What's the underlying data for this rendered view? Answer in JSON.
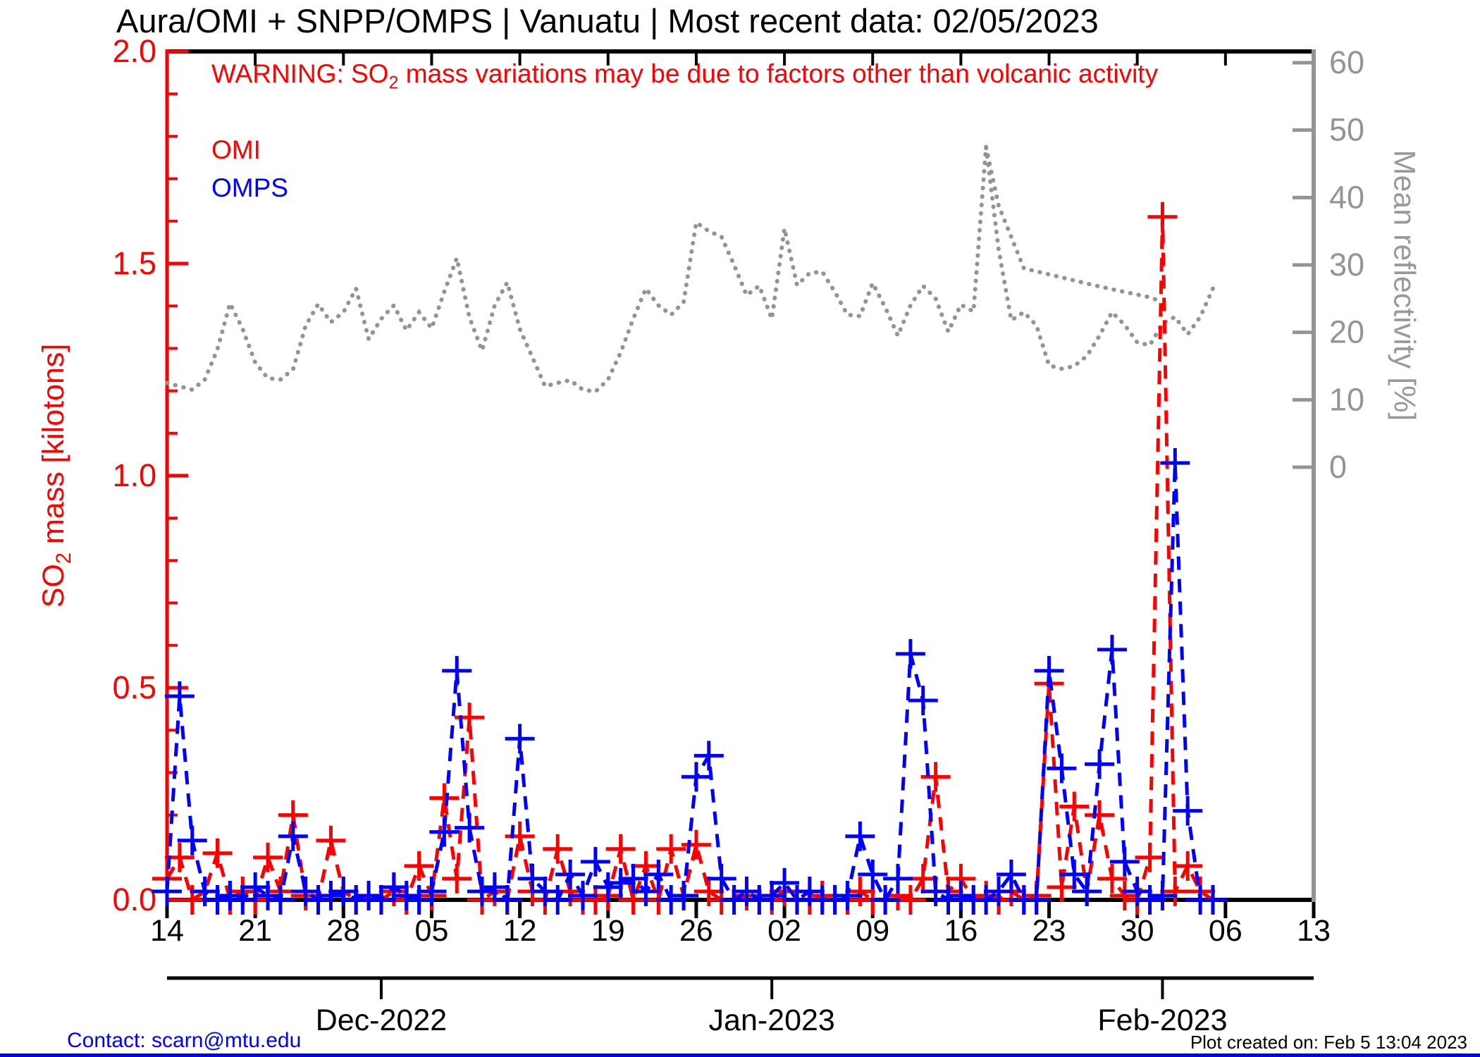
{
  "title": "Aura/OMI + SNPP/OMPS | Vanuatu | Most recent data: 02/05/2023",
  "warning_parts": [
    "WARNING: SO",
    "2",
    " mass variations may be due to factors other than volcanic activity"
  ],
  "legend": [
    {
      "label": "OMI",
      "color": "#ff0000"
    },
    {
      "label": "OMPS",
      "color": "#0000ff"
    }
  ],
  "footer": {
    "contact": "Contact: scarn@mtu.edu",
    "created": "Plot created on: Feb  5 13:04 2023"
  },
  "colors": {
    "omi": "#ff0000",
    "omps": "#0000ff",
    "reflectivity": "#949494",
    "axis_black": "#000000",
    "bottom_strip": "#0000ff"
  },
  "chart_data": {
    "type": "line",
    "title": "Aura/OMI + SNPP/OMPS | Vanuatu | Most recent data: 02/05/2023",
    "start_date": "2022-11-14",
    "x_span_days": 91,
    "left_axis": {
      "label_parts": [
        "SO",
        "2",
        " mass [kilotons]"
      ],
      "range": [
        0.0,
        2.0
      ],
      "major_tick_values": [
        0.0,
        0.5,
        1.0,
        1.5,
        2.0
      ],
      "major_tick_labels": [
        "0.0",
        "0.5",
        "1.0",
        "1.5",
        "2.0"
      ],
      "minor_tick_step": 0.1,
      "color": "#ff0000"
    },
    "right_axis": {
      "label": "Mean reflectivity [%]",
      "range_labeled": [
        0,
        60
      ],
      "major_tick_values": [
        0,
        10,
        20,
        30,
        40,
        50,
        60
      ],
      "major_tick_labels": [
        "0",
        "10",
        "20",
        "30",
        "40",
        "50",
        "60"
      ],
      "color": "#949494"
    },
    "x_axis": {
      "day_tick_days": [
        0,
        7,
        14,
        21,
        28,
        35,
        42,
        49,
        56,
        63,
        70,
        77,
        84,
        91
      ],
      "day_tick_labels": [
        "14",
        "21",
        "28",
        "05",
        "12",
        "19",
        "26",
        "02",
        "09",
        "16",
        "23",
        "30",
        "06",
        "13"
      ],
      "month_tick_days": [
        17,
        48,
        79
      ],
      "month_labels": [
        "Dec-2022",
        "Jan-2023",
        "Feb-2023"
      ]
    },
    "series": [
      {
        "name": "OMI",
        "axis": "left",
        "color": "#ff0000",
        "style": "dashed-plus",
        "values": [
          0.05,
          0.1,
          0.0,
          0.02,
          0.11,
          0.0,
          0.02,
          0.0,
          0.1,
          0.02,
          0.2,
          0.01,
          0.0,
          0.14,
          0.02,
          0.0,
          0.01,
          0.0,
          0.02,
          0.0,
          0.08,
          0.01,
          0.24,
          0.05,
          0.43,
          0.0,
          0.02,
          0.0,
          0.15,
          0.02,
          0.0,
          0.12,
          0.02,
          0.0,
          0.0,
          0.01,
          0.12,
          0.0,
          0.08,
          0.0,
          0.12,
          0.01,
          0.13,
          0.02,
          0.0,
          0.0,
          0.01,
          0.0,
          0.0,
          0.02,
          0.0,
          0.0,
          0.01,
          0.0,
          0.0,
          0.02,
          0.0,
          0.0,
          0.01,
          0.0,
          0.05,
          0.29,
          0.02,
          0.05,
          0.0,
          0.01,
          0.0,
          0.02,
          0.0,
          0.01,
          0.51,
          0.03,
          0.22,
          0.02,
          0.2,
          0.05,
          0.01,
          0.0,
          0.1,
          1.61,
          0.02,
          0.08,
          0.02,
          0.0
        ]
      },
      {
        "name": "OMPS",
        "axis": "left",
        "color": "#0000ff",
        "style": "dashed-plus",
        "values": [
          0.02,
          0.48,
          0.14,
          0.02,
          0.0,
          0.01,
          0.0,
          0.03,
          0.01,
          0.0,
          0.15,
          0.02,
          0.0,
          0.01,
          0.02,
          0.0,
          0.01,
          0.0,
          0.03,
          0.01,
          0.0,
          0.02,
          0.16,
          0.54,
          0.17,
          0.02,
          0.03,
          0.0,
          0.38,
          0.05,
          0.02,
          0.0,
          0.06,
          0.01,
          0.09,
          0.03,
          0.04,
          0.05,
          0.02,
          0.06,
          0.0,
          0.01,
          0.29,
          0.34,
          0.05,
          0.0,
          0.02,
          0.0,
          0.01,
          0.04,
          0.0,
          0.02,
          0.0,
          0.0,
          0.01,
          0.15,
          0.06,
          0.0,
          0.05,
          0.58,
          0.47,
          0.02,
          0.0,
          0.01,
          0.0,
          0.0,
          0.02,
          0.06,
          0.0,
          0.0,
          0.54,
          0.31,
          0.06,
          0.02,
          0.32,
          0.59,
          0.09,
          0.02,
          0.0,
          0.01,
          1.03,
          0.21,
          0.0,
          0.0
        ]
      },
      {
        "name": "Mean reflectivity",
        "axis": "right",
        "color": "#949494",
        "style": "dotted",
        "values": [
          12.5,
          12.0,
          11.5,
          13.0,
          17.5,
          24.3,
          20.5,
          15.5,
          13.2,
          13.0,
          14.5,
          21.0,
          24.2,
          21.5,
          23.0,
          26.5,
          19.0,
          22.0,
          24.0,
          20.3,
          23.0,
          20.6,
          26.0,
          31.0,
          22.2,
          17.3,
          24.0,
          27.4,
          20.5,
          16.3,
          12.0,
          12.5,
          12.9,
          11.5,
          11.2,
          13.0,
          17.0,
          22.0,
          26.5,
          24.0,
          22.6,
          24.5,
          36.3,
          35.0,
          34.2,
          30.0,
          25.5,
          26.9,
          22.0,
          35.4,
          27.0,
          28.8,
          29.0,
          26.0,
          22.6,
          22.4,
          27.3,
          23.7,
          19.5,
          24.0,
          26.9,
          25.0,
          20.1,
          24.1,
          23.1,
          47.5,
          32.3,
          21.8,
          23.0,
          21.0,
          15.1,
          14.6,
          15.0,
          16.5,
          19.5,
          23.0,
          21.1,
          18.5,
          18.1,
          21.3,
          22.3,
          19.7,
          22.3,
          26.5
        ]
      },
      {
        "name": "Mean reflectivity (second branch)",
        "axis": "right",
        "color": "#949494",
        "style": "dotted",
        "days": [
          65,
          66,
          68,
          70,
          72,
          74,
          76,
          78,
          79
        ],
        "values": [
          47.5,
          38.8,
          29.5,
          28.6,
          27.7,
          26.8,
          26.0,
          25.2,
          24.5
        ]
      }
    ]
  }
}
